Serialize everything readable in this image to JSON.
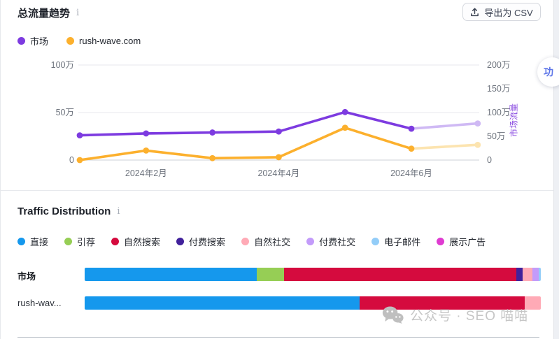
{
  "page": {
    "traffic_trend": {
      "title": "总流量趋势",
      "info_icon": "i",
      "export_button": {
        "label": "导出为 CSV"
      }
    },
    "traffic_distribution": {
      "title": "Traffic Distribution",
      "info_icon": "i"
    },
    "watermark": {
      "text": "公众号 · SEO 喵喵"
    },
    "floating_button": {
      "label": "功"
    }
  },
  "chart_data": [
    {
      "type": "line",
      "title": "总流量趋势",
      "x_visible_ticks": {
        "indices": [
          1,
          3,
          5
        ],
        "labels": [
          "2024年2月",
          "2024年4月",
          "2024年6月"
        ]
      },
      "series": [
        {
          "name": "市场",
          "axis": "right",
          "color": "#7d3be0",
          "faded_color": "#cfb9f4",
          "values_wan": [
            52,
            56,
            58,
            60,
            101,
            66,
            77
          ],
          "note": "last point is faded/projected segment"
        },
        {
          "name": "rush-wave.com",
          "axis": "left",
          "color": "#fcb02d",
          "faded_color": "#fce4b0",
          "values_wan": [
            0,
            10,
            2,
            3,
            34,
            12,
            16
          ],
          "note": "last point is faded/projected segment"
        }
      ],
      "left_axis": {
        "tick_values_wan": [
          100,
          50,
          0
        ],
        "tick_labels": [
          "100万",
          "50万",
          "0"
        ],
        "max_wan": 100
      },
      "right_axis": {
        "tick_values_wan": [
          200,
          150,
          100,
          50,
          0
        ],
        "tick_labels": [
          "200万",
          "150万",
          "100万",
          "50万",
          "0"
        ],
        "max_wan": 200,
        "axis_label": "市场流量"
      },
      "grid": "horizontal lines at 0 / 50万 / 100万 (left scale)",
      "legend_position": "top-left"
    },
    {
      "type": "stacked_bar_horizontal",
      "title": "Traffic Distribution",
      "channels": [
        {
          "label": "直接",
          "color": "#1598ed"
        },
        {
          "label": "引荐",
          "color": "#96ce55"
        },
        {
          "label": "自然搜索",
          "color": "#d50b3e"
        },
        {
          "label": "付费搜索",
          "color": "#41219b"
        },
        {
          "label": "自然社交",
          "color": "#ffaab6"
        },
        {
          "label": "付费社交",
          "color": "#c39bfa"
        },
        {
          "label": "电子邮件",
          "color": "#93cdf8"
        },
        {
          "label": "展示广告",
          "color": "#df3bd1"
        }
      ],
      "rows": [
        {
          "label": "市场",
          "bold": true,
          "segments": [
            {
              "channel": "直接",
              "pct": 37.8
            },
            {
              "channel": "引荐",
              "pct": 5.9
            },
            {
              "channel": "自然搜索",
              "pct": 50.9
            },
            {
              "channel": "付费搜索",
              "pct": 1.4
            },
            {
              "channel": "自然社交",
              "pct": 2.1
            },
            {
              "channel": "付费社交",
              "pct": 1.4
            },
            {
              "channel": "电子邮件",
              "pct": 0.5
            }
          ]
        },
        {
          "label": "rush-wav...",
          "bold": false,
          "segments": [
            {
              "channel": "直接",
              "pct": 60.2
            },
            {
              "channel": "自然搜索",
              "pct": 36.3
            },
            {
              "channel": "自然社交",
              "pct": 3.5
            }
          ]
        }
      ]
    }
  ]
}
